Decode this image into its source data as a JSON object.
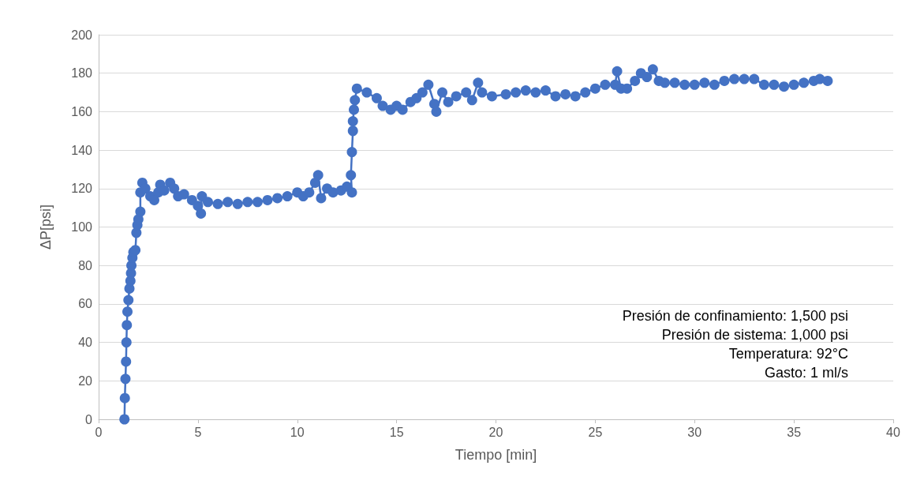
{
  "chart_data": {
    "type": "line",
    "xlabel": "Tiempo [min]",
    "ylabel": "ΔP[psi]",
    "xlim": [
      0,
      40
    ],
    "xticks": [
      0,
      5,
      10,
      15,
      20,
      25,
      30,
      35,
      40
    ],
    "ylim": [
      0,
      200
    ],
    "yticks": [
      0,
      20,
      40,
      60,
      80,
      100,
      120,
      140,
      160,
      180,
      200
    ],
    "grid": "y",
    "marker": "circle",
    "line_style": "solid",
    "annotations": [
      "Presión de confinamiento: 1,500 psi",
      "Presión de sistema: 1,000 psi",
      "Temperatura: 92°C",
      "Gasto: 1 ml/s"
    ],
    "series": [
      {
        "color": "#4472c4",
        "x": [
          1.3,
          1.32,
          1.35,
          1.38,
          1.4,
          1.42,
          1.45,
          1.5,
          1.55,
          1.6,
          1.63,
          1.65,
          1.7,
          1.75,
          1.85,
          1.9,
          1.95,
          2.0,
          2.1,
          2.1,
          2.2,
          2.35,
          2.6,
          2.8,
          3.0,
          3.1,
          3.3,
          3.6,
          3.8,
          4.0,
          4.3,
          4.7,
          5.0,
          5.15,
          5.2,
          5.5,
          6.0,
          6.5,
          7.0,
          7.5,
          8.0,
          8.5,
          9.0,
          9.5,
          10.0,
          10.3,
          10.6,
          10.9,
          11.05,
          11.2,
          11.5,
          11.8,
          12.2,
          12.5,
          12.75,
          12.7,
          12.75,
          12.8,
          12.8,
          12.85,
          12.9,
          13.0,
          13.5,
          14.0,
          14.3,
          14.7,
          15.0,
          15.3,
          15.7,
          16.0,
          16.3,
          16.6,
          16.9,
          17.0,
          17.3,
          17.6,
          18.0,
          18.5,
          18.8,
          19.1,
          19.3,
          19.8,
          20.5,
          21,
          21.5,
          22,
          22.5,
          23,
          23.5,
          24,
          24.5,
          25,
          25.5,
          26,
          26.1,
          26.3,
          26.6,
          27,
          27.3,
          27.6,
          27.9,
          28.2,
          28.5,
          29,
          29.5,
          30,
          30.5,
          31,
          31.5,
          32,
          32.5,
          33,
          33.5,
          34,
          34.5,
          35,
          35.5,
          36,
          36.3,
          36.7
        ],
        "values": [
          0,
          11,
          21,
          30,
          40,
          49,
          56,
          62,
          68,
          72,
          76,
          80,
          84,
          87,
          88,
          97,
          101,
          104,
          108,
          118,
          123,
          120,
          116,
          114,
          118,
          122,
          119,
          123,
          120,
          116,
          117,
          114,
          111,
          107,
          116,
          113,
          112,
          113,
          112,
          113,
          113,
          114,
          115,
          116,
          118,
          116,
          118,
          123,
          127,
          115,
          120,
          118,
          119,
          121,
          118,
          127,
          139,
          150,
          155,
          161,
          166,
          172,
          170,
          167,
          163,
          161,
          163,
          161,
          165,
          167,
          170,
          174,
          164,
          160,
          170,
          165,
          168,
          170,
          166,
          175,
          170,
          168,
          169,
          170,
          171,
          170,
          171,
          168,
          169,
          168,
          170,
          172,
          174,
          174,
          181,
          172,
          172,
          176,
          180,
          178,
          182,
          176,
          175,
          175,
          174,
          174,
          175,
          174,
          176,
          177,
          177,
          177,
          174,
          174,
          173,
          174,
          175,
          176,
          177,
          176
        ]
      }
    ]
  }
}
